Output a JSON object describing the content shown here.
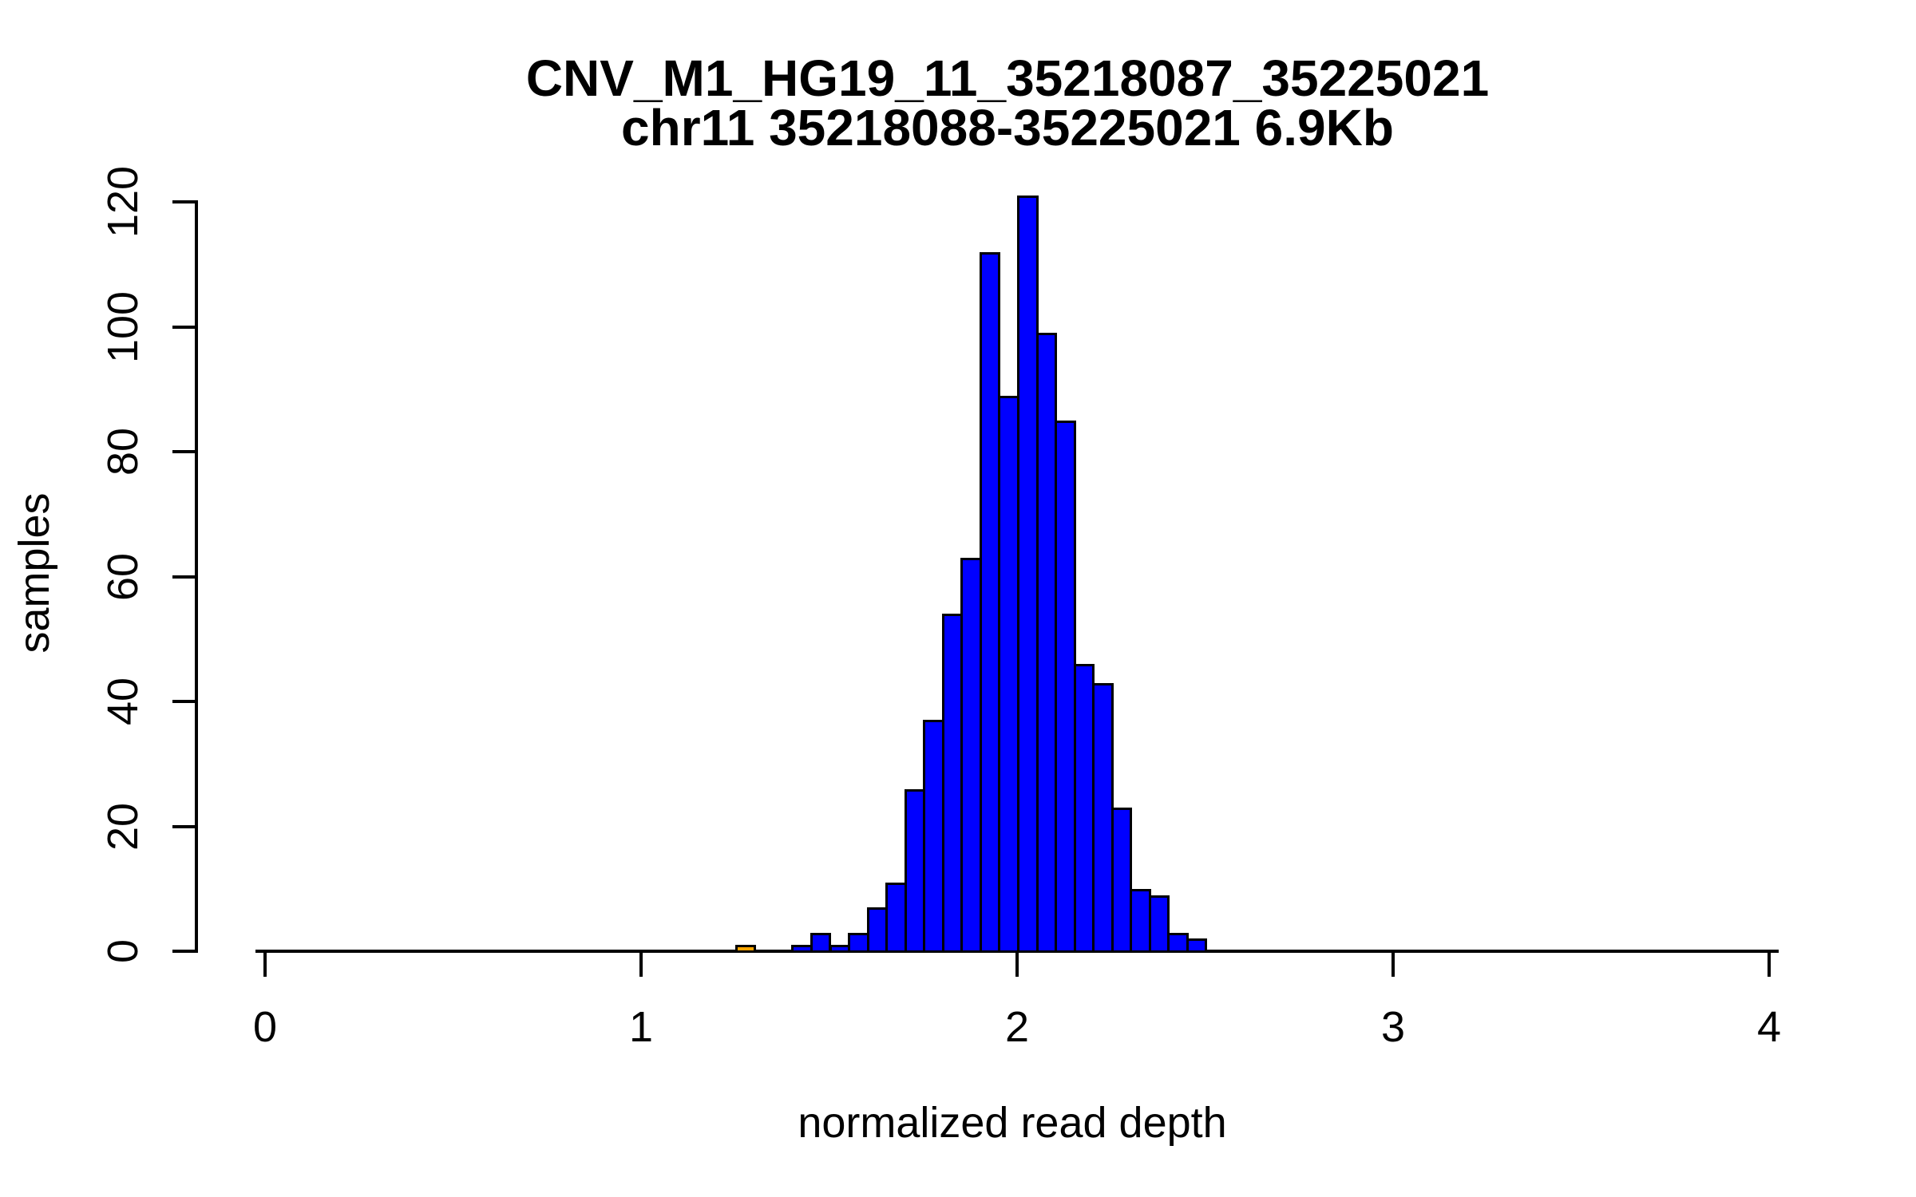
{
  "title": {
    "line1": "CNV_M1_HG19_11_35218087_35225021",
    "line2": "chr11 35218088-35225021 6.9Kb"
  },
  "axes": {
    "x": {
      "label": "normalized read depth",
      "ticks": [
        0,
        1,
        2,
        3,
        4
      ],
      "range": [
        0,
        4
      ]
    },
    "y": {
      "label": "samples",
      "ticks": [
        0,
        20,
        40,
        60,
        80,
        100,
        120
      ],
      "range": [
        0,
        120
      ]
    }
  },
  "colors": {
    "bar_fill": "#0000FF",
    "outlier_fill": "#FFA500",
    "bar_border": "#000000",
    "axis": "#000000",
    "text": "#000000",
    "background": "#FFFFFF"
  },
  "chart_data": {
    "type": "bar",
    "subtype": "histogram",
    "title": "CNV_M1_HG19_11_35218087_35225021",
    "subtitle": "chr11 35218088-35225021 6.9Kb",
    "xlabel": "normalized read depth",
    "ylabel": "samples",
    "xlim": [
      0,
      4
    ],
    "ylim": [
      0,
      120
    ],
    "grid": false,
    "legend": false,
    "bin_width": 0.05,
    "total_samples": 849,
    "outlier_note": "single orange bin near 1.25-1.30 with 1 sample; all other bins blue",
    "bins": [
      {
        "x_left": 1.25,
        "count": 1,
        "color": "#FFA500"
      },
      {
        "x_left": 1.3,
        "count": 0,
        "color": "#0000FF"
      },
      {
        "x_left": 1.35,
        "count": 0,
        "color": "#0000FF"
      },
      {
        "x_left": 1.4,
        "count": 1,
        "color": "#0000FF"
      },
      {
        "x_left": 1.45,
        "count": 3,
        "color": "#0000FF"
      },
      {
        "x_left": 1.5,
        "count": 1,
        "color": "#0000FF"
      },
      {
        "x_left": 1.55,
        "count": 3,
        "color": "#0000FF"
      },
      {
        "x_left": 1.6,
        "count": 7,
        "color": "#0000FF"
      },
      {
        "x_left": 1.65,
        "count": 11,
        "color": "#0000FF"
      },
      {
        "x_left": 1.7,
        "count": 26,
        "color": "#0000FF"
      },
      {
        "x_left": 1.75,
        "count": 37,
        "color": "#0000FF"
      },
      {
        "x_left": 1.8,
        "count": 54,
        "color": "#0000FF"
      },
      {
        "x_left": 1.85,
        "count": 63,
        "color": "#0000FF"
      },
      {
        "x_left": 1.9,
        "count": 112,
        "color": "#0000FF"
      },
      {
        "x_left": 1.95,
        "count": 89,
        "color": "#0000FF"
      },
      {
        "x_left": 2.0,
        "count": 121,
        "color": "#0000FF"
      },
      {
        "x_left": 2.05,
        "count": 99,
        "color": "#0000FF"
      },
      {
        "x_left": 2.1,
        "count": 85,
        "color": "#0000FF"
      },
      {
        "x_left": 2.15,
        "count": 46,
        "color": "#0000FF"
      },
      {
        "x_left": 2.2,
        "count": 43,
        "color": "#0000FF"
      },
      {
        "x_left": 2.25,
        "count": 23,
        "color": "#0000FF"
      },
      {
        "x_left": 2.3,
        "count": 10,
        "color": "#0000FF"
      },
      {
        "x_left": 2.35,
        "count": 9,
        "color": "#0000FF"
      },
      {
        "x_left": 2.4,
        "count": 3,
        "color": "#0000FF"
      },
      {
        "x_left": 2.45,
        "count": 2,
        "color": "#0000FF"
      }
    ]
  }
}
